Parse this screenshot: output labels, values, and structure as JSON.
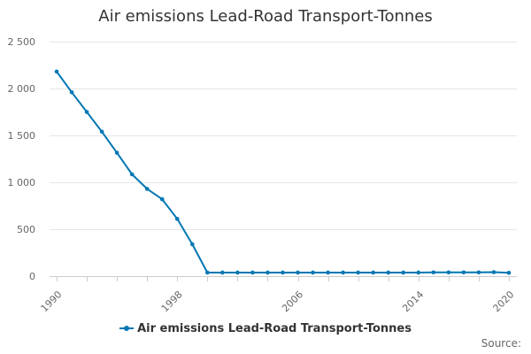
{
  "chart_data": {
    "type": "line",
    "title": "Air emissions Lead-Road Transport-Tonnes",
    "xlabel": "",
    "ylabel": "",
    "x": [
      1990,
      1991,
      1992,
      1993,
      1994,
      1995,
      1996,
      1997,
      1998,
      1999,
      2000,
      2001,
      2002,
      2003,
      2004,
      2005,
      2006,
      2007,
      2008,
      2009,
      2010,
      2011,
      2012,
      2013,
      2014,
      2015,
      2016,
      2017,
      2018,
      2019,
      2020
    ],
    "series": [
      {
        "name": "Air emissions Lead-Road Transport-Tonnes",
        "color": "#0077b3",
        "values": [
          2180,
          1960,
          1750,
          1540,
          1315,
          1085,
          930,
          820,
          610,
          340,
          38,
          38,
          38,
          38,
          38,
          38,
          38,
          38,
          38,
          38,
          38,
          38,
          38,
          38,
          38,
          40,
          40,
          40,
          40,
          42,
          35
        ]
      }
    ],
    "xlim": [
      1990,
      2020
    ],
    "ylim": [
      0,
      2500
    ],
    "x_ticks": [
      1990,
      1998,
      2006,
      2014,
      2020
    ],
    "x_tick_labels": [
      "1990",
      "1998",
      "2006",
      "2014",
      "2020"
    ],
    "y_ticks": [
      0,
      500,
      1000,
      1500,
      2000,
      2500
    ],
    "y_tick_labels": [
      "0",
      "500",
      "1 000",
      "1 500",
      "2 000",
      "2 500"
    ],
    "grid": true,
    "legend_position": "bottom"
  },
  "source_label": "Source:"
}
